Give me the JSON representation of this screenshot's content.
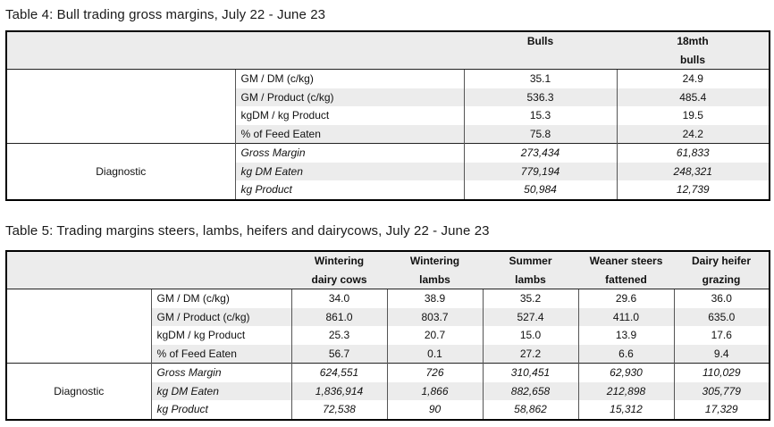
{
  "table4": {
    "caption": "Table 4: Bull trading gross margins, July 22 - June 23",
    "columns": [
      {
        "line1": "Bulls",
        "line2": ""
      },
      {
        "line1": "18mth",
        "line2": "bulls"
      }
    ],
    "metrics": [
      {
        "label": "GM / DM (c/kg)",
        "values": [
          "35.1",
          "24.9"
        ]
      },
      {
        "label": "GM / Product (c/kg)",
        "values": [
          "536.3",
          "485.4"
        ]
      },
      {
        "label": "kgDM / kg Product",
        "values": [
          "15.3",
          "19.5"
        ]
      },
      {
        "label": "% of Feed Eaten",
        "values": [
          "75.8",
          "24.2"
        ]
      }
    ],
    "diagnostic_label": "Diagnostic",
    "diagnostic": [
      {
        "label": "Gross Margin",
        "values": [
          "273,434",
          "61,833"
        ]
      },
      {
        "label": "kg DM Eaten",
        "values": [
          "779,194",
          "248,321"
        ]
      },
      {
        "label": "kg Product",
        "values": [
          "50,984",
          "12,739"
        ]
      }
    ]
  },
  "table5": {
    "caption": "Table 5: Trading margins steers, lambs, heifers and dairycows, July 22 - June 23",
    "columns": [
      {
        "line1": "Wintering",
        "line2": "dairy cows"
      },
      {
        "line1": "Wintering",
        "line2": "lambs"
      },
      {
        "line1": "Summer",
        "line2": "lambs"
      },
      {
        "line1": "Weaner steers",
        "line2": "fattened"
      },
      {
        "line1": "Dairy heifer",
        "line2": "grazing"
      }
    ],
    "metrics": [
      {
        "label": "GM / DM (c/kg)",
        "values": [
          "34.0",
          "38.9",
          "35.2",
          "29.6",
          "36.0"
        ]
      },
      {
        "label": "GM / Product (c/kg)",
        "values": [
          "861.0",
          "803.7",
          "527.4",
          "411.0",
          "635.0"
        ]
      },
      {
        "label": "kgDM / kg Product",
        "values": [
          "25.3",
          "20.7",
          "15.0",
          "13.9",
          "17.6"
        ]
      },
      {
        "label": "% of Feed Eaten",
        "values": [
          "56.7",
          "0.1",
          "27.2",
          "6.6",
          "9.4"
        ]
      }
    ],
    "diagnostic_label": "Diagnostic",
    "diagnostic": [
      {
        "label": "Gross Margin",
        "values": [
          "624,551",
          "726",
          "310,451",
          "62,930",
          "110,029"
        ]
      },
      {
        "label": "kg DM Eaten",
        "values": [
          "1,836,914",
          "1,866",
          "882,658",
          "212,898",
          "305,779"
        ]
      },
      {
        "label": "kg Product",
        "values": [
          "72,538",
          "90",
          "58,862",
          "15,312",
          "17,329"
        ]
      }
    ]
  }
}
